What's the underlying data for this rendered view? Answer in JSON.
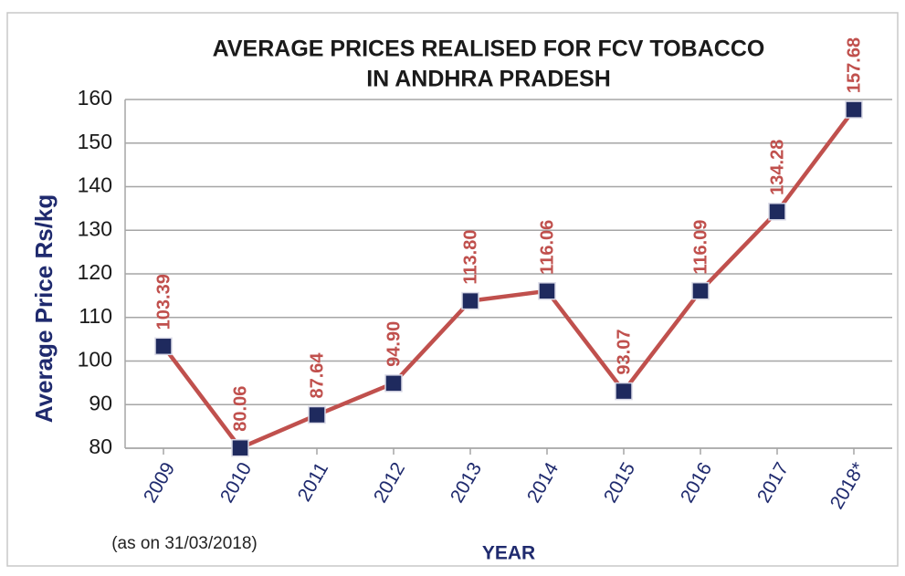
{
  "chart_data": {
    "type": "line",
    "title": [
      "AVERAGE PRICES REALISED FOR FCV TOBACCO",
      "IN ANDHRA PRADESH"
    ],
    "y_label": "Average Price Rs/kg",
    "x_label": "YEAR",
    "note": "(as on 31/03/2018)",
    "categories": [
      "2009",
      "2010",
      "2011",
      "2012",
      "2013",
      "2014",
      "2015",
      "2016",
      "2017",
      "2018*"
    ],
    "series": [
      {
        "name": "Average Price",
        "color": "#c0504d",
        "marker_color": "#1f2a5e",
        "values": [
          103.39,
          80.06,
          87.64,
          94.9,
          113.8,
          116.06,
          93.07,
          116.09,
          134.28,
          157.68
        ],
        "value_labels": [
          "103.39",
          "80.06",
          "87.64",
          "94.90",
          "113.80",
          "116.06",
          "93.07",
          "116.09",
          "134.28",
          "157.68"
        ]
      }
    ],
    "ylim": [
      80,
      160
    ],
    "yticks": [
      80,
      90,
      100,
      110,
      120,
      130,
      140,
      150,
      160
    ],
    "grid": true
  }
}
